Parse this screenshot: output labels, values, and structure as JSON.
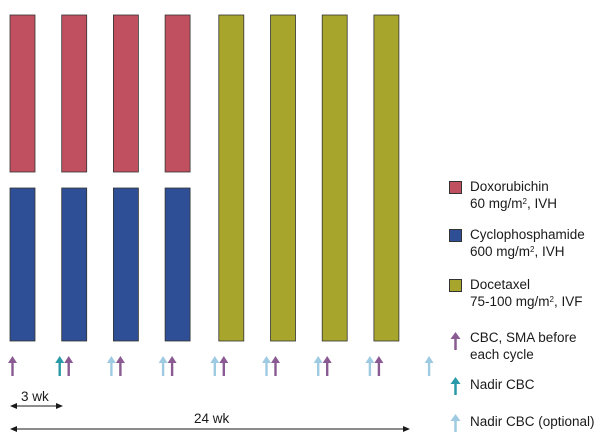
{
  "colors": {
    "doxorubicin": "#c0505f",
    "cyclophosphamide": "#2e4f96",
    "docetaxel": "#a8a52c",
    "cbc_arrow": "#8a5a93",
    "nadir_arrow": "#2a9aa8",
    "nadir_optional_arrow": "#9fcbe2",
    "dimension_line": "#1a1a1a"
  },
  "regimen": {
    "ac_cycles": 4,
    "docetaxel_cycles": 4
  },
  "arrow_rows": [
    [
      "cbc"
    ],
    [
      "nadir",
      "cbc"
    ],
    [
      "nadir_optional",
      "cbc"
    ],
    [
      "nadir_optional",
      "cbc"
    ],
    [
      "nadir_optional",
      "cbc"
    ],
    [
      "nadir_optional",
      "cbc"
    ],
    [
      "nadir_optional",
      "cbc"
    ],
    [
      "nadir_optional",
      "cbc"
    ],
    [
      "nadir_optional"
    ]
  ],
  "dimensions": {
    "cycle_label": "3 wk",
    "total_label": "24 wk"
  },
  "legend": {
    "doxorubicin": {
      "name": "Doxorubichin",
      "dose_pre": "60 mg/m",
      "dose_sup": "2",
      "dose_post": ", IVH"
    },
    "cyclophosphamide": {
      "name": "Cyclophosphamide",
      "dose_pre": "600 mg/m",
      "dose_sup": "2",
      "dose_post": ", IVH"
    },
    "docetaxel": {
      "name": "Docetaxel",
      "dose_pre": "75-100 mg/m",
      "dose_sup": "2",
      "dose_post": ", IVF"
    },
    "cbc": {
      "line1": "CBC, SMA before",
      "line2": "each cycle"
    },
    "nadir": {
      "label": "Nadir CBC"
    },
    "nadir_optional": {
      "label": "Nadir CBC (optional)"
    }
  }
}
